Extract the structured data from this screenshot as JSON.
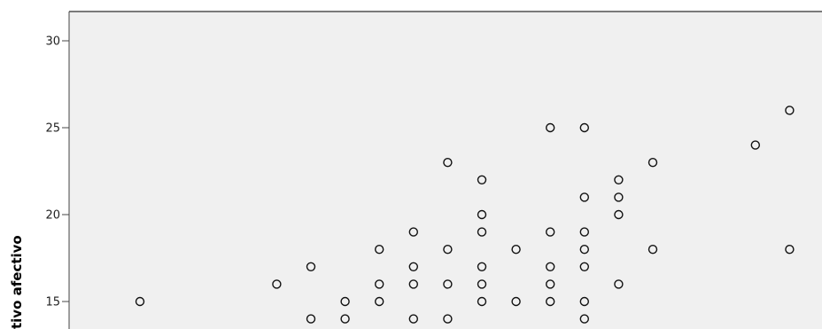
{
  "chart_data": {
    "type": "scatter",
    "title": "",
    "xlabel": "",
    "ylabel": "tivo afectivo",
    "ylim": [
      13,
      31
    ],
    "xlim": [
      -0.5,
      20.5
    ],
    "yticks": [
      15,
      20,
      25,
      30
    ],
    "ytick_labels": [
      "15",
      "20",
      "25",
      "30"
    ],
    "grid": false,
    "marker": "open-circle",
    "points": [
      {
        "x": 0,
        "y": 15
      },
      {
        "x": 4,
        "y": 16
      },
      {
        "x": 5,
        "y": 17
      },
      {
        "x": 5,
        "y": 14
      },
      {
        "x": 6,
        "y": 15
      },
      {
        "x": 6,
        "y": 14
      },
      {
        "x": 7,
        "y": 18
      },
      {
        "x": 7,
        "y": 16
      },
      {
        "x": 7,
        "y": 15
      },
      {
        "x": 8,
        "y": 19
      },
      {
        "x": 8,
        "y": 17
      },
      {
        "x": 8,
        "y": 16
      },
      {
        "x": 8,
        "y": 14
      },
      {
        "x": 9,
        "y": 23
      },
      {
        "x": 9,
        "y": 18
      },
      {
        "x": 9,
        "y": 16
      },
      {
        "x": 9,
        "y": 14
      },
      {
        "x": 10,
        "y": 22
      },
      {
        "x": 10,
        "y": 20
      },
      {
        "x": 10,
        "y": 19
      },
      {
        "x": 10,
        "y": 17
      },
      {
        "x": 10,
        "y": 16
      },
      {
        "x": 10,
        "y": 15
      },
      {
        "x": 11,
        "y": 18
      },
      {
        "x": 11,
        "y": 15
      },
      {
        "x": 12,
        "y": 25
      },
      {
        "x": 12,
        "y": 19
      },
      {
        "x": 12,
        "y": 17
      },
      {
        "x": 12,
        "y": 16
      },
      {
        "x": 12,
        "y": 15
      },
      {
        "x": 13,
        "y": 25
      },
      {
        "x": 13,
        "y": 21
      },
      {
        "x": 13,
        "y": 19
      },
      {
        "x": 13,
        "y": 18
      },
      {
        "x": 13,
        "y": 17
      },
      {
        "x": 13,
        "y": 15
      },
      {
        "x": 13,
        "y": 14
      },
      {
        "x": 14,
        "y": 22
      },
      {
        "x": 14,
        "y": 21
      },
      {
        "x": 14,
        "y": 20
      },
      {
        "x": 14,
        "y": 16
      },
      {
        "x": 15,
        "y": 23
      },
      {
        "x": 15,
        "y": 18
      },
      {
        "x": 18,
        "y": 24
      },
      {
        "x": 19,
        "y": 26
      },
      {
        "x": 19,
        "y": 18
      }
    ]
  }
}
